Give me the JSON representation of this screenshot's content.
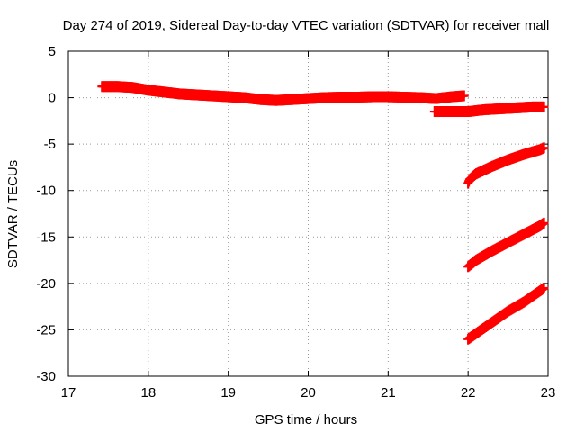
{
  "chart_data": {
    "type": "scatter",
    "title": "Day 274 of 2019, Sidereal Day-to-day VTEC variation (SDTVAR) for receiver mall",
    "xlabel": "GPS time / hours",
    "ylabel": "SDTVAR / TECUs",
    "xlim": [
      17,
      23
    ],
    "ylim": [
      -30,
      5
    ],
    "xticks": [
      17,
      18,
      19,
      20,
      21,
      22,
      23
    ],
    "yticks": [
      5,
      0,
      -5,
      -10,
      -15,
      -20,
      -25,
      -30
    ],
    "grid": true,
    "legend": "none",
    "color": "#ff0000",
    "series": [
      {
        "x": [
          17.42,
          17.6,
          17.8,
          18.0,
          18.2,
          18.4,
          18.6,
          18.8,
          19.0,
          19.2,
          19.4,
          19.6,
          19.8,
          20.0,
          20.2,
          20.4,
          20.6,
          20.8,
          21.0,
          21.2,
          21.4,
          21.6,
          21.8,
          21.95
        ],
        "y": [
          1.2,
          1.2,
          1.1,
          0.8,
          0.6,
          0.4,
          0.3,
          0.2,
          0.1,
          0.0,
          -0.2,
          -0.3,
          -0.2,
          -0.1,
          0.0,
          0.05,
          0.05,
          0.1,
          0.1,
          0.05,
          0.0,
          -0.1,
          0.1,
          0.2
        ]
      },
      {
        "x": [
          21.58,
          21.8,
          22.0,
          22.2,
          22.4,
          22.6,
          22.8,
          22.95
        ],
        "y": [
          -1.5,
          -1.5,
          -1.5,
          -1.3,
          -1.2,
          -1.1,
          -1.0,
          -1.0
        ]
      },
      {
        "x": [
          22.0,
          22.02,
          22.1,
          22.3,
          22.5,
          22.7,
          22.9,
          22.95
        ],
        "y": [
          -9.2,
          -8.8,
          -8.2,
          -7.4,
          -6.7,
          -6.1,
          -5.6,
          -5.4
        ]
      },
      {
        "x": [
          22.0,
          22.1,
          22.3,
          22.5,
          22.7,
          22.9,
          22.95
        ],
        "y": [
          -18.2,
          -17.5,
          -16.5,
          -15.6,
          -14.7,
          -13.8,
          -13.5
        ]
      },
      {
        "x": [
          22.0,
          22.1,
          22.3,
          22.5,
          22.7,
          22.9,
          22.95
        ],
        "y": [
          -26.0,
          -25.4,
          -24.2,
          -23.0,
          -22.0,
          -20.8,
          -20.5
        ]
      }
    ]
  }
}
